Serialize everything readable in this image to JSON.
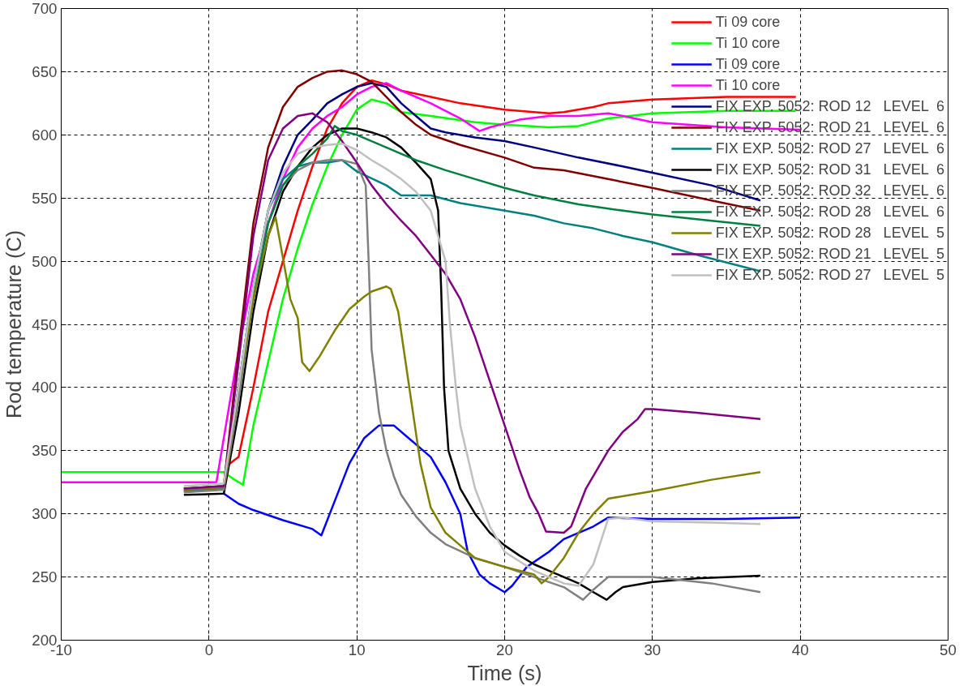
{
  "chart_data": {
    "type": "line",
    "xlabel": "Time (s)",
    "ylabel": "Rod temperature (C)",
    "xlim": [
      -10,
      50
    ],
    "ylim": [
      200,
      700
    ],
    "xticks": [
      -10,
      0,
      10,
      20,
      30,
      40,
      50
    ],
    "yticks": [
      200,
      250,
      300,
      350,
      400,
      450,
      500,
      550,
      600,
      650,
      700
    ],
    "grid": true,
    "legend": "top right",
    "marker": "none",
    "line_style": "solid",
    "series": [
      {
        "name": "Ti 09 core",
        "color": "#ff0000",
        "x": [
          1.2,
          2,
          3,
          4,
          5,
          6,
          7,
          8,
          9,
          10,
          11,
          12,
          13,
          15,
          17,
          20,
          23,
          24,
          26,
          27,
          30,
          35,
          39.7
        ],
        "values": [
          338,
          345,
          400,
          460,
          500,
          540,
          575,
          605,
          625,
          638,
          643,
          640,
          635,
          630,
          625,
          620,
          617,
          618,
          622,
          625,
          628,
          630,
          630
        ]
      },
      {
        "name": "Ti 10 core",
        "color": "#00ff00",
        "x": [
          -10,
          1,
          1.6,
          2.3,
          3,
          4,
          5,
          6,
          7,
          8,
          9,
          10,
          11,
          12,
          13,
          15,
          18,
          20,
          23,
          25,
          27,
          30,
          35,
          39.7
        ],
        "values": [
          333,
          333,
          328,
          323,
          370,
          420,
          470,
          510,
          545,
          575,
          600,
          620,
          628,
          625,
          618,
          615,
          610,
          608,
          606,
          607,
          613,
          617,
          619,
          619
        ]
      },
      {
        "name": "Ti 09 core",
        "color": "#0000ff",
        "x": [
          1,
          2,
          3,
          5,
          7,
          7.6,
          8.5,
          9.5,
          10.5,
          11.5,
          12.5,
          13.5,
          15,
          16,
          17,
          17.5,
          18.3,
          19,
          20,
          20.5,
          21.5,
          23,
          24,
          25,
          26,
          27,
          30,
          35,
          40
        ],
        "values": [
          316,
          308,
          303,
          295,
          288,
          283,
          310,
          340,
          360,
          370,
          370,
          360,
          345,
          325,
          300,
          270,
          252,
          245,
          238,
          243,
          258,
          270,
          280,
          285,
          290,
          297,
          296,
          296,
          297
        ]
      },
      {
        "name": "Ti 10 core",
        "color": "#ff00ff",
        "x": [
          -10,
          0.5,
          1,
          2,
          3,
          4,
          5,
          6,
          7,
          8,
          9,
          10,
          11,
          12,
          13,
          15,
          17,
          18.3,
          19,
          21,
          23,
          25,
          27,
          28,
          30,
          35,
          40
        ],
        "values": [
          325,
          325,
          360,
          430,
          490,
          530,
          565,
          590,
          605,
          615,
          622,
          632,
          638,
          641,
          635,
          625,
          613,
          603,
          606,
          612,
          615,
          615,
          617,
          615,
          610,
          606,
          604
        ]
      },
      {
        "name": "FIX EXP. 5052: ROD 12   LEVEL  6",
        "color": "#000080",
        "x": [
          -1.7,
          1,
          2,
          3,
          4,
          5,
          6,
          7,
          8,
          9,
          10,
          11,
          12,
          13,
          14,
          15,
          16,
          18,
          20,
          22,
          25,
          28,
          30,
          34,
          37.3
        ],
        "values": [
          318,
          320,
          400,
          480,
          540,
          575,
          600,
          612,
          625,
          632,
          638,
          641,
          638,
          625,
          615,
          605,
          602,
          598,
          595,
          590,
          582,
          575,
          570,
          560,
          548
        ]
      },
      {
        "name": "FIX EXP. 5052: ROD 21   LEVEL  6",
        "color": "#800000",
        "x": [
          -1.7,
          1,
          2,
          3,
          4,
          5,
          6,
          7,
          8,
          9,
          10,
          11,
          12,
          13,
          14,
          15,
          17,
          20,
          22,
          24,
          27,
          30,
          34,
          37.3
        ],
        "values": [
          320,
          322,
          430,
          530,
          590,
          622,
          638,
          645,
          650,
          651,
          648,
          642,
          630,
          618,
          608,
          600,
          592,
          582,
          574,
          572,
          565,
          558,
          548,
          540
        ]
      },
      {
        "name": "FIX EXP. 5052: ROD 27   LEVEL  6",
        "color": "#008080",
        "x": [
          -1.7,
          1,
          2,
          3,
          4,
          5,
          6,
          7,
          8,
          9,
          10,
          12,
          13,
          15,
          17,
          20,
          22,
          24,
          26,
          28,
          30,
          33,
          37.3
        ],
        "values": [
          318,
          320,
          400,
          480,
          540,
          565,
          575,
          578,
          578,
          580,
          571,
          560,
          552,
          552,
          546,
          540,
          536,
          530,
          526,
          520,
          515,
          505,
          492
        ]
      },
      {
        "name": "FIX EXP. 5052: ROD 31   LEVEL  6",
        "color": "#000000",
        "x": [
          -1.7,
          1,
          2,
          3,
          4,
          5,
          6,
          7,
          8,
          9,
          10,
          11,
          12,
          13,
          14,
          15,
          15.5,
          15.7,
          15.9,
          16.2,
          17,
          18,
          19,
          20,
          21,
          22,
          23,
          24,
          25,
          26,
          26.9,
          27.5,
          28,
          30,
          33,
          37.3
        ],
        "values": [
          315,
          316,
          380,
          460,
          520,
          555,
          575,
          590,
          600,
          605,
          605,
          602,
          598,
          590,
          578,
          565,
          540,
          480,
          400,
          350,
          320,
          300,
          285,
          275,
          267,
          260,
          255,
          250,
          245,
          238,
          232,
          238,
          242,
          246,
          249,
          251
        ]
      },
      {
        "name": "FIX EXP. 5052: ROD 32   LEVEL  6",
        "color": "#808080",
        "x": [
          -1.7,
          1,
          2,
          3,
          4,
          5,
          6,
          7,
          8,
          9,
          10,
          10.6,
          10.8,
          11,
          11.5,
          12,
          12.5,
          13,
          14,
          15,
          16,
          18,
          20,
          22,
          24,
          25.3,
          26,
          27,
          30,
          34,
          37.3
        ],
        "values": [
          317,
          319,
          390,
          470,
          530,
          560,
          572,
          578,
          580,
          580,
          577,
          560,
          500,
          430,
          380,
          350,
          330,
          315,
          298,
          285,
          276,
          265,
          258,
          250,
          242,
          232,
          240,
          250,
          250,
          245,
          238
        ]
      },
      {
        "name": "FIX EXP. 5052: ROD 28   LEVEL  6",
        "color": "#008040",
        "x": [
          -1.7,
          1,
          2,
          3,
          4,
          5,
          6,
          7,
          8,
          8.5,
          9,
          10,
          12,
          14,
          16,
          18,
          20,
          22,
          25,
          28,
          30,
          34,
          37.3
        ],
        "values": [
          320,
          322,
          400,
          470,
          530,
          560,
          575,
          585,
          597,
          607,
          603,
          600,
          590,
          580,
          572,
          565,
          558,
          552,
          545,
          540,
          537,
          532,
          528
        ]
      },
      {
        "name": "FIX EXP. 5052: ROD 28   LEVEL  5",
        "color": "#808000",
        "x": [
          -1.7,
          1,
          2,
          3,
          4,
          4.5,
          5.5,
          6,
          6.3,
          6.8,
          7.5,
          8.5,
          9.5,
          10.5,
          11,
          12,
          12.3,
          12.8,
          13.3,
          13.8,
          14.3,
          15,
          16,
          17,
          18,
          20,
          22,
          22.5,
          23,
          24,
          25,
          26,
          27,
          30,
          34,
          37.3
        ],
        "values": [
          319,
          321,
          400,
          470,
          520,
          535,
          470,
          455,
          420,
          413,
          425,
          445,
          462,
          472,
          476,
          480,
          478,
          460,
          420,
          380,
          340,
          305,
          285,
          275,
          265,
          258,
          252,
          245,
          250,
          265,
          285,
          300,
          312,
          318,
          327,
          333
        ]
      },
      {
        "name": "FIX EXP. 5052: ROD 21   LEVEL  5",
        "color": "#800080",
        "x": [
          -1.7,
          1,
          2,
          3,
          4,
          5,
          6,
          7,
          8,
          9,
          10,
          11,
          12,
          13,
          14,
          15,
          16,
          17,
          18,
          19,
          20,
          21,
          21.7,
          22.3,
          22.8,
          24,
          24.5,
          25.5,
          27,
          28,
          29,
          29.5,
          30,
          33,
          37.3
        ],
        "values": [
          320,
          322,
          420,
          520,
          580,
          605,
          615,
          617,
          610,
          595,
          578,
          560,
          545,
          532,
          520,
          505,
          490,
          470,
          440,
          405,
          370,
          335,
          313,
          300,
          286,
          285,
          290,
          320,
          350,
          365,
          375,
          383,
          383,
          380,
          375
        ]
      },
      {
        "name": "FIX EXP. 5052: ROD 27   LEVEL  5",
        "color": "#c0c0c0",
        "x": [
          -1.7,
          1,
          2,
          3,
          4,
          5,
          6,
          7,
          8,
          9,
          10,
          11,
          12,
          13,
          14,
          15,
          16,
          16.3,
          16.7,
          17,
          18,
          19,
          20,
          22,
          24,
          25,
          26,
          27,
          28,
          30,
          34,
          37.3
        ],
        "values": [
          322,
          324,
          400,
          480,
          540,
          570,
          585,
          590,
          592,
          593,
          588,
          580,
          573,
          565,
          555,
          540,
          500,
          450,
          400,
          370,
          320,
          290,
          270,
          255,
          245,
          243,
          260,
          296,
          297,
          294,
          293,
          292
        ]
      }
    ]
  }
}
